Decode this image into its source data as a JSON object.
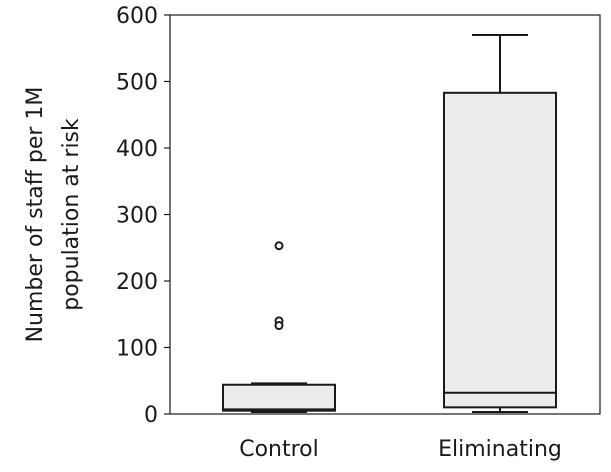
{
  "chart_data": {
    "type": "box",
    "ylabel": [
      "Number of staff per 1M",
      "population at risk"
    ],
    "ylim": [
      0,
      600
    ],
    "yticks": [
      0,
      100,
      200,
      300,
      400,
      500,
      600
    ],
    "grid": false,
    "categories": [
      "Control",
      "Eliminating"
    ],
    "boxes": [
      {
        "name": "Control",
        "whisker_low": 3,
        "q1": 5,
        "median": 7,
        "q3": 44,
        "whisker_high": 46,
        "outliers": [
          {
            "value": 253,
            "marker": "circle"
          },
          {
            "value": 140,
            "marker": "circle"
          },
          {
            "value": 133,
            "marker": "circle"
          }
        ]
      },
      {
        "name": "Eliminating",
        "whisker_low": 3,
        "q1": 10,
        "median": 32,
        "q3": 483,
        "whisker_high": 570,
        "outliers": []
      }
    ],
    "colors": {
      "box_fill": "#ececec",
      "box_stroke": "#1a1a1a",
      "axis": "#1a1a1a"
    }
  }
}
